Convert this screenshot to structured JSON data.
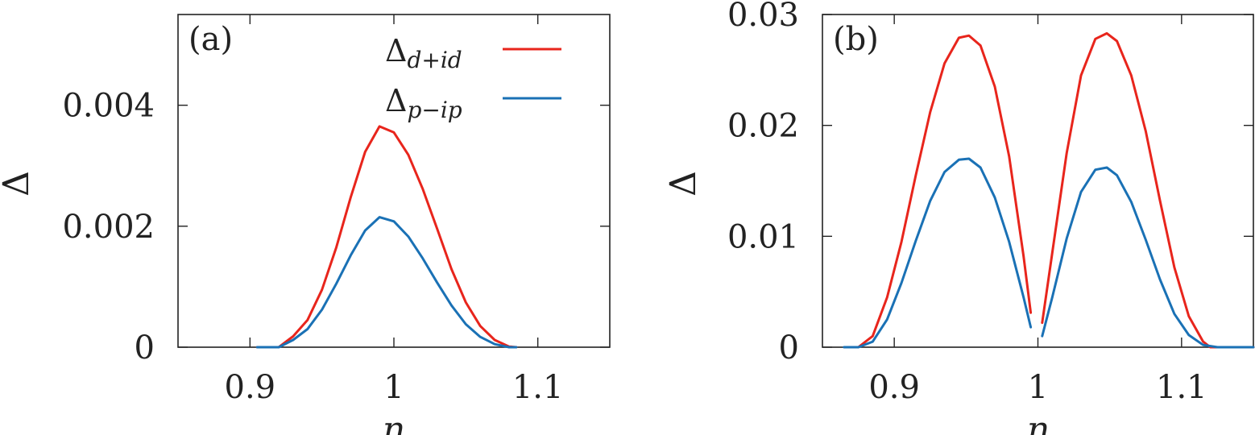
{
  "chart_data": [
    {
      "type": "line",
      "panel_label": "(a)",
      "xlabel": "n",
      "ylabel": "Δ",
      "xlim": [
        0.85,
        1.15
      ],
      "ylim": [
        0,
        0.0055
      ],
      "x_ticks": [
        0.9,
        1.0,
        1.1
      ],
      "x_tick_labels": [
        "0.9",
        "1",
        "1.1"
      ],
      "y_ticks": [
        0,
        0.002,
        0.004
      ],
      "y_tick_labels": [
        "0",
        "0.002",
        "0.004"
      ],
      "legend_position": "top-right",
      "series": [
        {
          "name": "Δd+id",
          "name_main": "Δ",
          "name_sub": "d+id",
          "color": "#e8251c",
          "x": [
            0.905,
            0.92,
            0.93,
            0.94,
            0.95,
            0.96,
            0.97,
            0.98,
            0.99,
            1.0,
            1.01,
            1.02,
            1.03,
            1.04,
            1.05,
            1.06,
            1.07,
            1.08,
            1.085
          ],
          "y": [
            0,
            0,
            0.00018,
            0.00045,
            0.00095,
            0.00165,
            0.00248,
            0.00323,
            0.00365,
            0.00355,
            0.00318,
            0.00262,
            0.00196,
            0.00129,
            0.00074,
            0.00035,
            0.00012,
            1e-05,
            0
          ]
        },
        {
          "name": "Δp−ip",
          "name_main": "Δ",
          "name_sub": "p−ip",
          "color": "#1a71b5",
          "x": [
            0.905,
            0.92,
            0.93,
            0.94,
            0.95,
            0.96,
            0.97,
            0.98,
            0.99,
            1.0,
            1.01,
            1.02,
            1.03,
            1.04,
            1.05,
            1.06,
            1.07,
            1.08,
            1.085
          ],
          "y": [
            0,
            0,
            0.00012,
            0.0003,
            0.00062,
            0.00105,
            0.00152,
            0.00193,
            0.00215,
            0.00208,
            0.00183,
            0.00147,
            0.00107,
            0.00069,
            0.00038,
            0.00017,
            5e-05,
            0,
            0
          ]
        }
      ]
    },
    {
      "type": "line",
      "panel_label": "(b)",
      "xlabel": "n",
      "ylabel": "Δ",
      "xlim": [
        0.85,
        1.15
      ],
      "ylim": [
        0,
        0.03
      ],
      "x_ticks": [
        0.9,
        1.0,
        1.1
      ],
      "x_tick_labels": [
        "0.9",
        "1",
        "1.1"
      ],
      "y_ticks": [
        0,
        0.01,
        0.02,
        0.03
      ],
      "y_tick_labels": [
        "0",
        "0.01",
        "0.02",
        "0.03"
      ],
      "series": [
        {
          "name": "Δd+id",
          "color": "#e8251c",
          "segments": [
            {
              "x": [
                0.875,
                0.885,
                0.895,
                0.905,
                0.915,
                0.925,
                0.935,
                0.945,
                0.952,
                0.96,
                0.97,
                0.98,
                0.99,
                0.995
              ],
              "y": [
                0,
                0.001,
                0.0045,
                0.0095,
                0.0155,
                0.0212,
                0.0256,
                0.0279,
                0.0281,
                0.0272,
                0.0235,
                0.0172,
                0.0082,
                0.0031
              ]
            },
            {
              "x": [
                1.003,
                1.01,
                1.02,
                1.03,
                1.04,
                1.048,
                1.055,
                1.065,
                1.075,
                1.085,
                1.095,
                1.105,
                1.115,
                1.12,
                1.13,
                1.15
              ],
              "y": [
                0.0022,
                0.0085,
                0.0175,
                0.0245,
                0.0278,
                0.0283,
                0.0276,
                0.0245,
                0.0195,
                0.0132,
                0.0072,
                0.0028,
                0.0005,
                0,
                0,
                0
              ]
            }
          ]
        },
        {
          "name": "Δp−ip",
          "color": "#1a71b5",
          "segments": [
            {
              "x": [
                0.865,
                0.875,
                0.885,
                0.895,
                0.905,
                0.915,
                0.925,
                0.935,
                0.945,
                0.952,
                0.96,
                0.97,
                0.98,
                0.99,
                0.995
              ],
              "y": [
                0,
                0,
                0.0005,
                0.0025,
                0.0058,
                0.0096,
                0.0132,
                0.0158,
                0.0169,
                0.017,
                0.0162,
                0.0135,
                0.0095,
                0.0045,
                0.0018
              ]
            },
            {
              "x": [
                1.003,
                1.01,
                1.02,
                1.03,
                1.04,
                1.048,
                1.055,
                1.065,
                1.075,
                1.085,
                1.095,
                1.105,
                1.115,
                1.125,
                1.13,
                1.15
              ],
              "y": [
                0.001,
                0.0045,
                0.0098,
                0.014,
                0.016,
                0.0162,
                0.0155,
                0.0131,
                0.0097,
                0.0061,
                0.003,
                0.0011,
                0.0002,
                0,
                0,
                0
              ]
            }
          ]
        }
      ]
    }
  ]
}
